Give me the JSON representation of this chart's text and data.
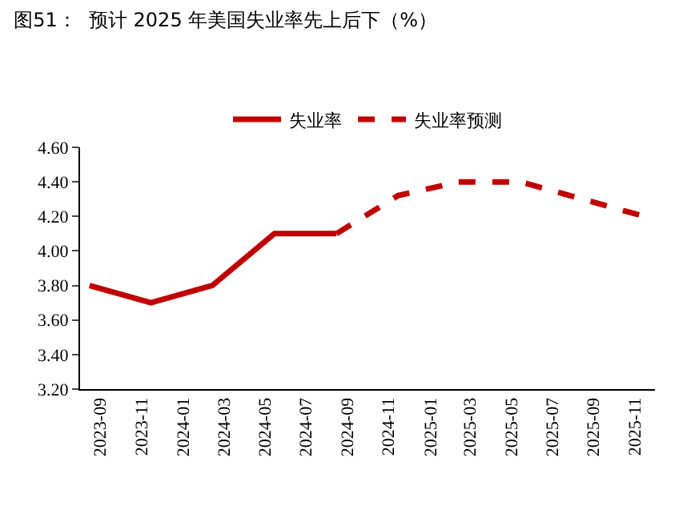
{
  "chart_data": {
    "type": "line",
    "title": "图51：  预计 2025 年美国失业率先上后下（%）",
    "series": [
      {
        "name": "失业率",
        "color": "#c00000",
        "line_style": "solid",
        "x": [
          "2023-09-15",
          "2023-12-15",
          "2024-03-15",
          "2024-06-15",
          "2024-09-15"
        ],
        "values": [
          3.8,
          3.7,
          3.8,
          4.1,
          4.1
        ]
      },
      {
        "name": "失业率预测",
        "color": "#c00000",
        "line_style": "dashed",
        "x": [
          "2024-09-15",
          "2024-12-15",
          "2025-03-15",
          "2025-06-15",
          "2025-09-15",
          "2025-12-15"
        ],
        "values": [
          4.1,
          4.32,
          4.4,
          4.4,
          4.3,
          4.2
        ]
      }
    ],
    "xlim": [
      "2023-09-01",
      "2025-12-31"
    ],
    "xticks": [
      {
        "value": "2023-10-01",
        "label": "2023-09"
      },
      {
        "value": "2023-12-01",
        "label": "2023-11"
      },
      {
        "value": "2024-02-01",
        "label": "2024-01"
      },
      {
        "value": "2024-04-01",
        "label": "2024-03"
      },
      {
        "value": "2024-06-01",
        "label": "2024-05"
      },
      {
        "value": "2024-08-01",
        "label": "2024-07"
      },
      {
        "value": "2024-10-01",
        "label": "2024-09"
      },
      {
        "value": "2024-12-01",
        "label": "2024-11"
      },
      {
        "value": "2025-02-01",
        "label": "2025-01"
      },
      {
        "value": "2025-04-01",
        "label": "2025-03"
      },
      {
        "value": "2025-06-01",
        "label": "2025-05"
      },
      {
        "value": "2025-08-01",
        "label": "2025-07"
      },
      {
        "value": "2025-10-01",
        "label": "2025-09"
      },
      {
        "value": "2025-12-01",
        "label": "2025-11"
      }
    ],
    "ylim": [
      3.2,
      4.6
    ],
    "yticks": [
      {
        "value": 3.2,
        "label": "3.20"
      },
      {
        "value": 3.4,
        "label": "3.40"
      },
      {
        "value": 3.6,
        "label": "3.60"
      },
      {
        "value": 3.8,
        "label": "3.80"
      },
      {
        "value": 4.0,
        "label": "4.00"
      },
      {
        "value": 4.2,
        "label": "4.20"
      },
      {
        "value": 4.4,
        "label": "4.40"
      },
      {
        "value": 4.6,
        "label": "4.60"
      }
    ],
    "legend": "top",
    "grid": false
  }
}
